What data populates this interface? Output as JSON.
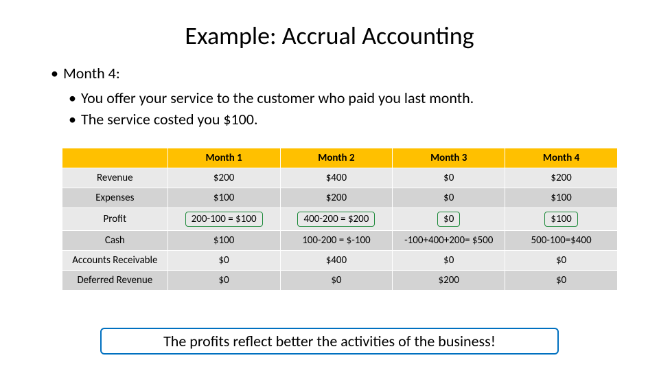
{
  "title": "Example: Accrual Accounting",
  "heading": "Month 4:",
  "sub1": "You offer your service to the customer who paid you last month.",
  "sub2": "The service costed you $100.",
  "table": {
    "header_bg": "#ffc000",
    "band_a": "#e9e9e9",
    "band_b": "#d3d3d3",
    "border_color": "#ffffff",
    "profit_box_border": "#1e8a3b",
    "columns": [
      "",
      "Month 1",
      "Month 2",
      "Month 3",
      "Month 4"
    ],
    "rows": [
      {
        "label": "Revenue",
        "cells": [
          "$200",
          "$400",
          "$0",
          "$200"
        ],
        "band": "a"
      },
      {
        "label": "Expenses",
        "cells": [
          "$100",
          "$200",
          "$0",
          "$100"
        ],
        "band": "b"
      },
      {
        "label": "Profit",
        "cells": [
          "200-100 = $100",
          "400-200 = $200",
          "$0",
          "$100"
        ],
        "band": "a",
        "boxed": [
          true,
          true,
          true,
          true
        ]
      },
      {
        "label": "Cash",
        "cells": [
          "$100",
          "100-200 = $-100",
          "-100+400+200= $500",
          "500-100=$400"
        ],
        "band": "b"
      },
      {
        "label": "Accounts Receivable",
        "cells": [
          "$0",
          "$400",
          "$0",
          "$0"
        ],
        "band": "a"
      },
      {
        "label": "Deferred Revenue",
        "cells": [
          "$0",
          "$0",
          "$200",
          "$0"
        ],
        "band": "b"
      }
    ]
  },
  "callout": "The profits reflect better the activities of the business!",
  "callout_border": "#0070c0"
}
